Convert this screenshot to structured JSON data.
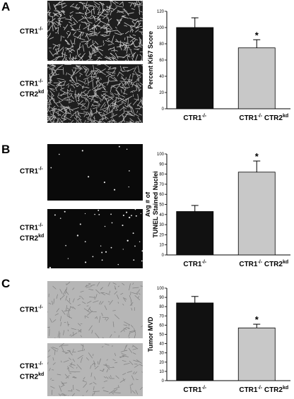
{
  "labels": {
    "ctr1": "CTR1",
    "ctr1_sup": "-/-",
    "ctr2": "CTR2",
    "ctr2_sup": "kd"
  },
  "panels": [
    {
      "letter": "A",
      "image_style": "fibrous",
      "chart_data": {
        "type": "bar",
        "categories": [
          "CTR1-/-",
          "CTR1-/- CTR2kd"
        ],
        "values": [
          100,
          75
        ],
        "errors": [
          12,
          10
        ],
        "colors": [
          "#111111",
          "#c8c8c8"
        ],
        "significance": [
          "",
          "*"
        ],
        "ylabel": "Percent Ki67 Score",
        "ylim": [
          0,
          120
        ],
        "yticks": [
          0,
          20,
          40,
          60,
          80,
          100,
          120
        ]
      }
    },
    {
      "letter": "B",
      "image_style": "dark",
      "chart_data": {
        "type": "bar",
        "categories": [
          "CTR1-/-",
          "CTR1-/- CTR2kd"
        ],
        "values": [
          43,
          82
        ],
        "errors": [
          6,
          11
        ],
        "colors": [
          "#111111",
          "#c8c8c8"
        ],
        "significance": [
          "",
          "*"
        ],
        "ylabel": "Avg # of TUNEL Stained Nuclei",
        "ylim": [
          0,
          100
        ],
        "yticks": [
          0,
          10,
          20,
          30,
          40,
          50,
          60,
          70,
          80,
          90,
          100
        ]
      }
    },
    {
      "letter": "C",
      "image_style": "grey",
      "chart_data": {
        "type": "bar",
        "categories": [
          "CTR1-/-",
          "CTR1-/- CTR2kd"
        ],
        "values": [
          84,
          57
        ],
        "errors": [
          7,
          4
        ],
        "colors": [
          "#111111",
          "#c8c8c8"
        ],
        "significance": [
          "",
          "*"
        ],
        "ylabel": "Tumor MVD",
        "ylim": [
          0,
          100
        ],
        "yticks": [
          0,
          10,
          20,
          30,
          40,
          50,
          60,
          70,
          80,
          90,
          100
        ]
      }
    }
  ]
}
